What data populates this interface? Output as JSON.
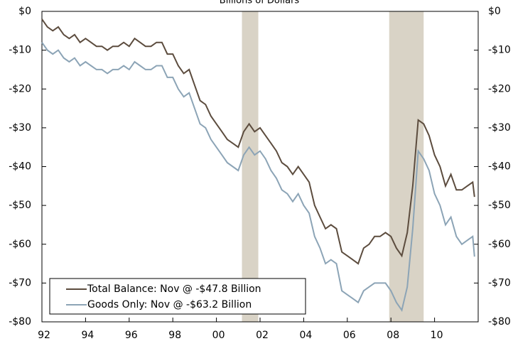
{
  "chart_data": {
    "type": "line",
    "title": "Billions of Dollars",
    "x": [
      1992,
      1992.25,
      1992.5,
      1992.75,
      1993,
      1993.25,
      1993.5,
      1993.75,
      1994,
      1994.25,
      1994.5,
      1994.75,
      1995,
      1995.25,
      1995.5,
      1995.75,
      1996,
      1996.25,
      1996.5,
      1996.75,
      1997,
      1997.25,
      1997.5,
      1997.75,
      1998,
      1998.25,
      1998.5,
      1998.75,
      1999,
      1999.25,
      1999.5,
      1999.75,
      2000,
      2000.25,
      2000.5,
      2000.75,
      2001,
      2001.25,
      2001.5,
      2001.75,
      2002,
      2002.25,
      2002.5,
      2002.75,
      2003,
      2003.25,
      2003.5,
      2003.75,
      2004,
      2004.25,
      2004.5,
      2004.75,
      2005,
      2005.25,
      2005.5,
      2005.75,
      2006,
      2006.25,
      2006.5,
      2006.75,
      2007,
      2007.25,
      2007.5,
      2007.75,
      2008,
      2008.25,
      2008.5,
      2008.75,
      2009,
      2009.25,
      2009.5,
      2009.75,
      2010,
      2010.25,
      2010.5,
      2010.75,
      2011,
      2011.25,
      2011.5,
      2011.75,
      2011.83
    ],
    "series": [
      {
        "name": "Total Balance: Nov @ -$47.8 Billion",
        "color": "#5c4c3e",
        "values": [
          -2,
          -4,
          -5,
          -4,
          -6,
          -7,
          -6,
          -8,
          -7,
          -8,
          -9,
          -9,
          -10,
          -9,
          -9,
          -8,
          -9,
          -7,
          -8,
          -9,
          -9,
          -8,
          -8,
          -11,
          -11,
          -14,
          -16,
          -15,
          -19,
          -23,
          -24,
          -27,
          -29,
          -31,
          -33,
          -34,
          -35,
          -31,
          -29,
          -31,
          -30,
          -32,
          -34,
          -36,
          -39,
          -40,
          -42,
          -40,
          -42,
          -44,
          -50,
          -53,
          -56,
          -55,
          -56,
          -62,
          -63,
          -64,
          -65,
          -61,
          -60,
          -58,
          -58,
          -57,
          -58,
          -61,
          -63,
          -57,
          -45,
          -28,
          -29,
          -32,
          -37,
          -40,
          -45,
          -42,
          -46,
          -46,
          -45,
          -44,
          -47.8
        ]
      },
      {
        "name": "Goods Only: Nov @ -$63.2 Billion",
        "color": "#8ca4b6",
        "values": [
          -8,
          -10,
          -11,
          -10,
          -12,
          -13,
          -12,
          -14,
          -13,
          -14,
          -15,
          -15,
          -16,
          -15,
          -15,
          -14,
          -15,
          -13,
          -14,
          -15,
          -15,
          -14,
          -14,
          -17,
          -17,
          -20,
          -22,
          -21,
          -25,
          -29,
          -30,
          -33,
          -35,
          -37,
          -39,
          -40,
          -41,
          -37,
          -35,
          -37,
          -36,
          -38,
          -41,
          -43,
          -46,
          -47,
          -49,
          -47,
          -50,
          -52,
          -58,
          -61,
          -65,
          -64,
          -65,
          -72,
          -73,
          -74,
          -75,
          -72,
          -71,
          -70,
          -70,
          -70,
          -72,
          -75,
          -77,
          -71,
          -56,
          -36,
          -38,
          -41,
          -47,
          -50,
          -55,
          -53,
          -58,
          -60,
          -59,
          -58,
          -63.2
        ]
      }
    ],
    "recessions": [
      [
        2001.17,
        2001.92
      ],
      [
        2007.92,
        2009.5
      ]
    ],
    "xlim": [
      1992,
      2012
    ],
    "xticks": [
      {
        "value": 1992,
        "label": "92"
      },
      {
        "value": 1994,
        "label": "94"
      },
      {
        "value": 1996,
        "label": "96"
      },
      {
        "value": 1998,
        "label": "98"
      },
      {
        "value": 2000,
        "label": "00"
      },
      {
        "value": 2002,
        "label": "02"
      },
      {
        "value": 2004,
        "label": "04"
      },
      {
        "value": 2006,
        "label": "06"
      },
      {
        "value": 2008,
        "label": "08"
      },
      {
        "value": 2010,
        "label": "10"
      }
    ],
    "ylim": [
      -80,
      0
    ],
    "yticks": [
      {
        "value": 0,
        "label": "$0"
      },
      {
        "value": -10,
        "label": "-$10"
      },
      {
        "value": -20,
        "label": "-$20"
      },
      {
        "value": -30,
        "label": "-$30"
      },
      {
        "value": -40,
        "label": "-$40"
      },
      {
        "value": -50,
        "label": "-$50"
      },
      {
        "value": -60,
        "label": "-$60"
      },
      {
        "value": -70,
        "label": "-$70"
      },
      {
        "value": -80,
        "label": "-$80"
      }
    ],
    "y2lim": [
      -80,
      0
    ],
    "y2ticks": [
      {
        "value": 0,
        "label": "$0"
      },
      {
        "value": -10,
        "label": "-$10"
      },
      {
        "value": -20,
        "label": "-$20"
      },
      {
        "value": -30,
        "label": "-$30"
      },
      {
        "value": -40,
        "label": "-$40"
      },
      {
        "value": -50,
        "label": "-$50"
      },
      {
        "value": -60,
        "label": "-$60"
      },
      {
        "value": -70,
        "label": "-$70"
      },
      {
        "value": -80,
        "label": "-$80"
      }
    ],
    "recession_color": "#d9d3c6",
    "legend": "lower left"
  }
}
